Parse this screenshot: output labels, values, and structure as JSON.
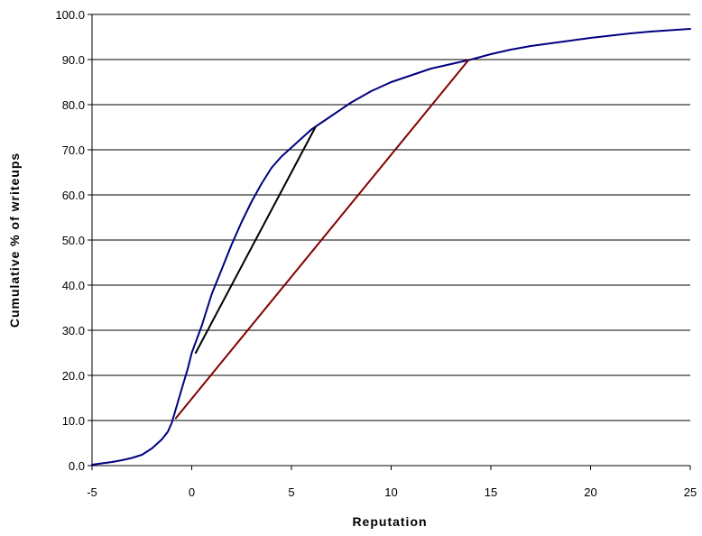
{
  "chart_data": {
    "type": "line",
    "title": "",
    "xlabel": "Reputation",
    "ylabel": "Cumulative % of writeups",
    "xlim": [
      -5,
      25
    ],
    "ylim": [
      0,
      100
    ],
    "x_ticks": [
      "-5",
      "0",
      "5",
      "10",
      "15",
      "20",
      "25"
    ],
    "y_ticks": [
      "0.0",
      "10.0",
      "20.0",
      "30.0",
      "40.0",
      "50.0",
      "60.0",
      "70.0",
      "80.0",
      "90.0",
      "100.0"
    ],
    "grid": "horizontal",
    "legend": "none",
    "series": [
      {
        "color": "#000080",
        "x": [
          -5,
          -4.5,
          -4,
          -3.5,
          -3,
          -2.5,
          -2,
          -1.5,
          -1.2,
          -1,
          -0.8,
          -0.5,
          -0.2,
          0,
          0.5,
          1,
          1.5,
          2,
          2.5,
          3,
          3.5,
          4,
          4.5,
          5,
          5.5,
          6,
          6.5,
          7,
          8,
          9,
          10,
          11,
          12,
          13,
          14,
          15,
          16,
          17,
          18,
          19,
          20,
          21,
          22,
          23,
          24,
          25
        ],
        "values": [
          0.2,
          0.5,
          0.8,
          1.2,
          1.7,
          2.4,
          3.8,
          5.8,
          7.5,
          9.5,
          12.5,
          17,
          21.5,
          25,
          31,
          38,
          43.5,
          49,
          54,
          58.5,
          62.5,
          66,
          68.5,
          70.5,
          72.5,
          74.5,
          76,
          77.5,
          80.5,
          83,
          85,
          86.5,
          88,
          89,
          90,
          91.2,
          92.2,
          93,
          93.6,
          94.2,
          94.8,
          95.3,
          95.8,
          96.2,
          96.5,
          96.8
        ]
      },
      {
        "color": "#000000",
        "x": [
          0.2,
          6.2
        ],
        "values": [
          25,
          75
        ]
      },
      {
        "color": "#800000",
        "x": [
          -0.8,
          13.9
        ],
        "values": [
          10.5,
          90
        ]
      }
    ]
  }
}
